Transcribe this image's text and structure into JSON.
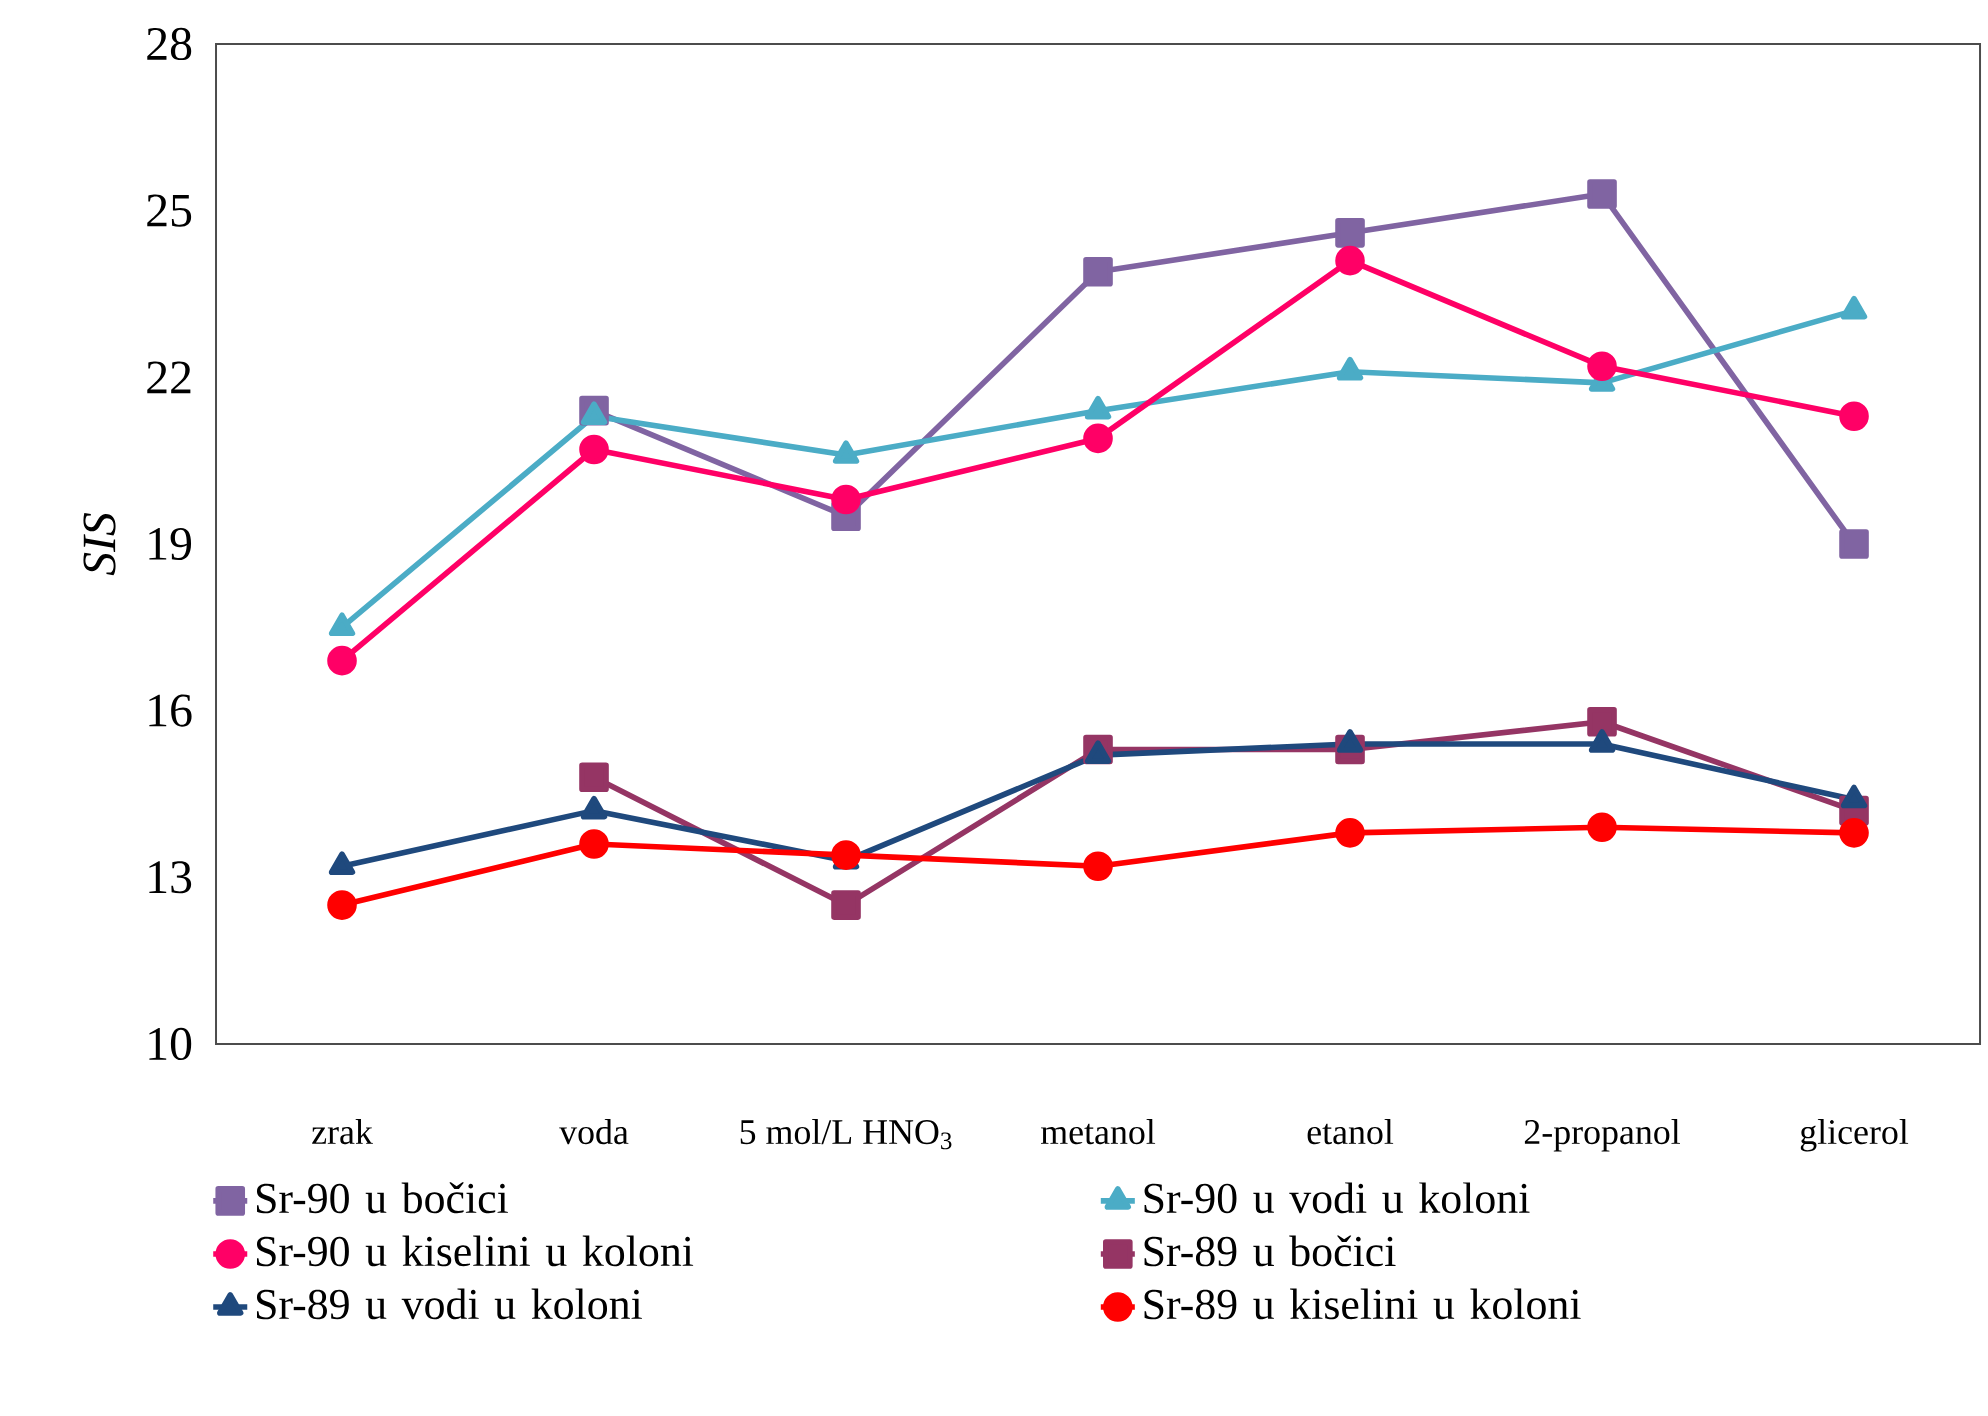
{
  "chart_data": {
    "type": "line",
    "ylabel": "*SIS*",
    "categories": [
      "zrak",
      "voda",
      "5 mol/L HNO$_{3}$",
      "metanol",
      "etanol",
      "2-propanol",
      "glicerol"
    ],
    "ylim": [
      10,
      28
    ],
    "yticks": [
      10,
      13,
      16,
      19,
      22,
      25,
      28
    ],
    "grid": false,
    "legend": "bottom",
    "series": [
      {
        "name": "Sr-90 u bočici",
        "color": "#8064a2",
        "marker": "square",
        "values": [
          null,
          21.4,
          19.5,
          23.9,
          24.6,
          25.3,
          19.0
        ]
      },
      {
        "name": "Sr-90 u vodi u koloni",
        "color": "#4bacc6",
        "marker": "triangle",
        "values": [
          17.5,
          21.3,
          20.6,
          21.4,
          22.1,
          21.9,
          23.2
        ]
      },
      {
        "name": "Sr-90 u kiselini u koloni",
        "color": "#ff0066",
        "marker": "circle",
        "values": [
          16.9,
          20.7,
          19.8,
          20.9,
          24.1,
          22.2,
          21.3
        ]
      },
      {
        "name": "Sr-89 u bočici",
        "color": "#953564",
        "marker": "square",
        "values": [
          null,
          14.8,
          12.5,
          15.3,
          15.3,
          15.8,
          14.2
        ]
      },
      {
        "name": "Sr-89 u vodi u koloni",
        "color": "#1f497d",
        "marker": "triangle",
        "values": [
          13.2,
          14.2,
          13.3,
          15.2,
          15.4,
          15.4,
          14.4
        ]
      },
      {
        "name": "Sr-89 u kiselini u koloni",
        "color": "#ff0000",
        "marker": "circle",
        "values": [
          12.5,
          13.6,
          13.4,
          13.2,
          13.8,
          13.9,
          13.8
        ]
      }
    ]
  }
}
